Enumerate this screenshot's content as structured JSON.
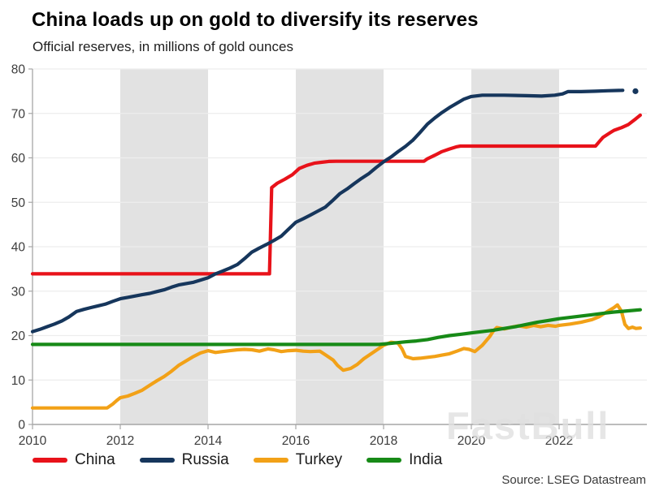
{
  "header": {
    "title": "China loads up on gold to diversify its reserves",
    "subtitle": "Official reserves, in millions of gold ounces"
  },
  "source_note": "Source: LSEG Datastream",
  "watermark": "FastBull",
  "chart_data": {
    "type": "line",
    "title": "China loads up on gold to diversify its reserves",
    "subtitle": "Official reserves, in millions of gold ounces",
    "xlabel": "",
    "ylabel": "Official reserves, millions of gold ounces",
    "xlim": [
      2010,
      2024
    ],
    "ylim": [
      0,
      80
    ],
    "x_ticks": [
      2010,
      2012,
      2014,
      2016,
      2018,
      2020,
      2022
    ],
    "y_ticks": [
      0,
      10,
      20,
      30,
      40,
      50,
      60,
      70,
      80
    ],
    "grid": "horizontal",
    "legend_position": "bottom",
    "colors": {
      "band": "#e2e2e2",
      "gridline": "#ededed",
      "axis": "#a6a6a6",
      "tick_label": "#3c3c3c"
    },
    "shaded_bands": [
      [
        2012,
        2014
      ],
      [
        2016,
        2018
      ],
      [
        2020,
        2022
      ]
    ],
    "series": [
      {
        "name": "China",
        "color": "#e8121a",
        "points": [
          [
            2010.0,
            33.9
          ],
          [
            2015.4,
            33.9
          ],
          [
            2015.45,
            53.3
          ],
          [
            2015.58,
            54.3
          ],
          [
            2015.75,
            55.2
          ],
          [
            2015.92,
            56.2
          ],
          [
            2016.08,
            57.6
          ],
          [
            2016.25,
            58.3
          ],
          [
            2016.42,
            58.8
          ],
          [
            2016.58,
            59.0
          ],
          [
            2016.75,
            59.2
          ],
          [
            2016.92,
            59.24
          ],
          [
            2018.92,
            59.24
          ],
          [
            2019.0,
            59.8
          ],
          [
            2019.17,
            60.6
          ],
          [
            2019.33,
            61.4
          ],
          [
            2019.5,
            62.0
          ],
          [
            2019.67,
            62.5
          ],
          [
            2019.75,
            62.64
          ],
          [
            2022.83,
            62.64
          ],
          [
            2022.92,
            63.7
          ],
          [
            2023.0,
            64.6
          ],
          [
            2023.17,
            65.7
          ],
          [
            2023.25,
            66.2
          ],
          [
            2023.42,
            66.8
          ],
          [
            2023.58,
            67.5
          ],
          [
            2023.75,
            68.8
          ],
          [
            2023.85,
            69.6
          ]
        ]
      },
      {
        "name": "Russia",
        "color": "#16365c",
        "points": [
          [
            2010.0,
            20.9
          ],
          [
            2010.17,
            21.4
          ],
          [
            2010.33,
            22.0
          ],
          [
            2010.5,
            22.6
          ],
          [
            2010.67,
            23.3
          ],
          [
            2010.83,
            24.2
          ],
          [
            2011.0,
            25.4
          ],
          [
            2011.17,
            25.9
          ],
          [
            2011.33,
            26.3
          ],
          [
            2011.5,
            26.7
          ],
          [
            2011.67,
            27.1
          ],
          [
            2011.83,
            27.7
          ],
          [
            2012.0,
            28.3
          ],
          [
            2012.17,
            28.6
          ],
          [
            2012.33,
            28.9
          ],
          [
            2012.5,
            29.2
          ],
          [
            2012.67,
            29.5
          ],
          [
            2012.83,
            29.9
          ],
          [
            2013.0,
            30.3
          ],
          [
            2013.17,
            30.9
          ],
          [
            2013.33,
            31.4
          ],
          [
            2013.5,
            31.7
          ],
          [
            2013.67,
            32.0
          ],
          [
            2013.83,
            32.5
          ],
          [
            2014.0,
            33.0
          ],
          [
            2014.17,
            33.9
          ],
          [
            2014.33,
            34.5
          ],
          [
            2014.5,
            35.2
          ],
          [
            2014.67,
            36.0
          ],
          [
            2014.83,
            37.3
          ],
          [
            2015.0,
            38.8
          ],
          [
            2015.17,
            39.7
          ],
          [
            2015.33,
            40.5
          ],
          [
            2015.5,
            41.4
          ],
          [
            2015.67,
            42.4
          ],
          [
            2015.83,
            43.9
          ],
          [
            2016.0,
            45.5
          ],
          [
            2016.17,
            46.3
          ],
          [
            2016.33,
            47.1
          ],
          [
            2016.5,
            48.0
          ],
          [
            2016.67,
            48.9
          ],
          [
            2016.83,
            50.3
          ],
          [
            2017.0,
            51.9
          ],
          [
            2017.17,
            53.0
          ],
          [
            2017.33,
            54.2
          ],
          [
            2017.5,
            55.4
          ],
          [
            2017.67,
            56.5
          ],
          [
            2017.83,
            57.8
          ],
          [
            2018.0,
            59.1
          ],
          [
            2018.17,
            60.2
          ],
          [
            2018.33,
            61.4
          ],
          [
            2018.5,
            62.6
          ],
          [
            2018.67,
            64.0
          ],
          [
            2018.83,
            65.7
          ],
          [
            2019.0,
            67.6
          ],
          [
            2019.17,
            69.0
          ],
          [
            2019.33,
            70.2
          ],
          [
            2019.5,
            71.3
          ],
          [
            2019.67,
            72.3
          ],
          [
            2019.83,
            73.2
          ],
          [
            2020.0,
            73.8
          ],
          [
            2020.25,
            74.1
          ],
          [
            2020.75,
            74.1
          ],
          [
            2021.25,
            74.0
          ],
          [
            2021.6,
            73.9
          ],
          [
            2021.9,
            74.1
          ],
          [
            2022.08,
            74.4
          ],
          [
            2022.2,
            74.9
          ],
          [
            2022.5,
            74.9
          ],
          [
            2022.83,
            75.0
          ],
          [
            2023.1,
            75.1
          ],
          [
            2023.45,
            75.2
          ]
        ],
        "end_marker": [
          2023.74,
          75.0
        ]
      },
      {
        "name": "Turkey",
        "color": "#f2a117",
        "points": [
          [
            2010.0,
            3.7
          ],
          [
            2011.7,
            3.7
          ],
          [
            2011.83,
            4.6
          ],
          [
            2011.92,
            5.4
          ],
          [
            2012.0,
            6.0
          ],
          [
            2012.17,
            6.4
          ],
          [
            2012.33,
            7.0
          ],
          [
            2012.5,
            7.7
          ],
          [
            2012.67,
            8.8
          ],
          [
            2012.83,
            9.8
          ],
          [
            2013.0,
            10.8
          ],
          [
            2013.17,
            12.0
          ],
          [
            2013.33,
            13.3
          ],
          [
            2013.5,
            14.3
          ],
          [
            2013.67,
            15.3
          ],
          [
            2013.83,
            16.1
          ],
          [
            2014.0,
            16.6
          ],
          [
            2014.17,
            16.2
          ],
          [
            2014.33,
            16.4
          ],
          [
            2014.5,
            16.6
          ],
          [
            2014.67,
            16.8
          ],
          [
            2014.83,
            16.9
          ],
          [
            2015.0,
            16.8
          ],
          [
            2015.17,
            16.5
          ],
          [
            2015.37,
            17.0
          ],
          [
            2015.5,
            16.8
          ],
          [
            2015.67,
            16.4
          ],
          [
            2015.83,
            16.6
          ],
          [
            2016.0,
            16.7
          ],
          [
            2016.17,
            16.5
          ],
          [
            2016.33,
            16.4
          ],
          [
            2016.55,
            16.5
          ],
          [
            2016.7,
            15.5
          ],
          [
            2016.85,
            14.5
          ],
          [
            2016.95,
            13.3
          ],
          [
            2017.08,
            12.2
          ],
          [
            2017.25,
            12.6
          ],
          [
            2017.4,
            13.5
          ],
          [
            2017.55,
            14.8
          ],
          [
            2017.7,
            15.8
          ],
          [
            2017.85,
            16.8
          ],
          [
            2018.0,
            17.8
          ],
          [
            2018.17,
            18.5
          ],
          [
            2018.33,
            18.3
          ],
          [
            2018.42,
            17.0
          ],
          [
            2018.5,
            15.3
          ],
          [
            2018.67,
            14.8
          ],
          [
            2018.83,
            14.9
          ],
          [
            2019.0,
            15.1
          ],
          [
            2019.17,
            15.3
          ],
          [
            2019.33,
            15.6
          ],
          [
            2019.5,
            15.9
          ],
          [
            2019.67,
            16.5
          ],
          [
            2019.83,
            17.1
          ],
          [
            2019.95,
            16.9
          ],
          [
            2020.08,
            16.4
          ],
          [
            2020.25,
            17.8
          ],
          [
            2020.42,
            19.8
          ],
          [
            2020.5,
            21.0
          ],
          [
            2020.58,
            21.8
          ],
          [
            2020.75,
            21.5
          ],
          [
            2020.92,
            21.9
          ],
          [
            2021.08,
            22.2
          ],
          [
            2021.25,
            21.9
          ],
          [
            2021.42,
            22.3
          ],
          [
            2021.58,
            22.0
          ],
          [
            2021.75,
            22.3
          ],
          [
            2021.92,
            22.1
          ],
          [
            2022.0,
            22.3
          ],
          [
            2022.25,
            22.6
          ],
          [
            2022.5,
            23.0
          ],
          [
            2022.75,
            23.6
          ],
          [
            2022.92,
            24.3
          ],
          [
            2023.08,
            25.3
          ],
          [
            2023.25,
            26.3
          ],
          [
            2023.33,
            26.9
          ],
          [
            2023.42,
            25.5
          ],
          [
            2023.5,
            22.5
          ],
          [
            2023.58,
            21.6
          ],
          [
            2023.67,
            21.9
          ],
          [
            2023.75,
            21.6
          ],
          [
            2023.85,
            21.7
          ]
        ]
      },
      {
        "name": "India",
        "color": "#178a17",
        "points": [
          [
            2010.0,
            18.0
          ],
          [
            2017.9,
            18.0
          ],
          [
            2018.1,
            18.2
          ],
          [
            2018.3,
            18.4
          ],
          [
            2018.5,
            18.6
          ],
          [
            2018.75,
            18.8
          ],
          [
            2019.0,
            19.1
          ],
          [
            2019.25,
            19.6
          ],
          [
            2019.5,
            20.0
          ],
          [
            2019.75,
            20.3
          ],
          [
            2020.0,
            20.6
          ],
          [
            2020.25,
            20.9
          ],
          [
            2020.5,
            21.2
          ],
          [
            2020.75,
            21.6
          ],
          [
            2021.0,
            22.0
          ],
          [
            2021.25,
            22.5
          ],
          [
            2021.5,
            23.0
          ],
          [
            2021.75,
            23.4
          ],
          [
            2022.0,
            23.8
          ],
          [
            2022.25,
            24.1
          ],
          [
            2022.5,
            24.4
          ],
          [
            2022.75,
            24.7
          ],
          [
            2023.0,
            25.0
          ],
          [
            2023.25,
            25.3
          ],
          [
            2023.5,
            25.5
          ],
          [
            2023.85,
            25.8
          ]
        ]
      }
    ]
  }
}
